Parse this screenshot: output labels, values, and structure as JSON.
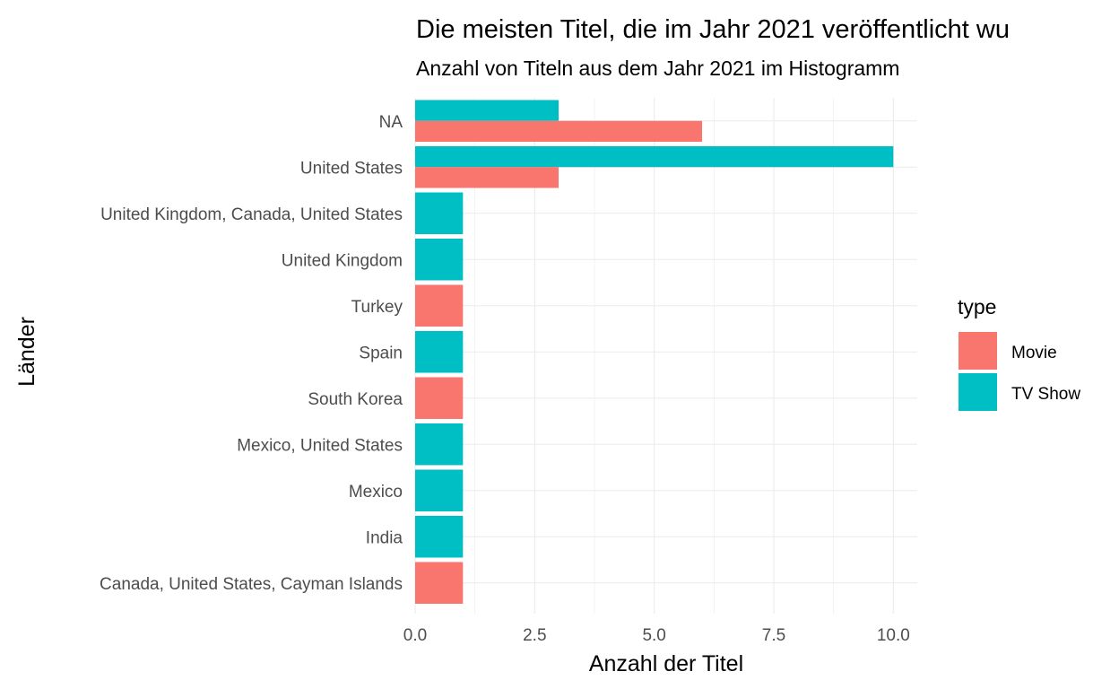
{
  "chart_data": {
    "type": "bar",
    "orientation": "horizontal",
    "title": "Die meisten Titel, die im Jahr 2021 veröffentlicht wu",
    "subtitle": "Anzahl von Titeln aus dem Jahr 2021 im Histogramm",
    "xlabel": "Anzahl der Titel",
    "ylabel": "Länder",
    "categories": [
      "NA",
      "United States",
      "United Kingdom, Canada, United States",
      "United Kingdom",
      "Turkey",
      "Spain",
      "South Korea",
      "Mexico, United States",
      "Mexico",
      "India",
      "Canada, United States, Cayman Islands"
    ],
    "series": [
      {
        "name": "Movie",
        "color": "#F8766D",
        "values": [
          6,
          3,
          null,
          null,
          1,
          null,
          1,
          null,
          null,
          null,
          1
        ]
      },
      {
        "name": "TV Show",
        "color": "#00BFC4",
        "values": [
          3,
          10,
          1,
          1,
          null,
          1,
          null,
          1,
          1,
          1,
          null
        ]
      }
    ],
    "xlim": [
      0,
      10.5
    ],
    "xticks": [
      0,
      2.5,
      5,
      7.5,
      10
    ],
    "xtick_labels": [
      "0.0",
      "2.5",
      "5.0",
      "7.5",
      "10.0"
    ],
    "legend": {
      "title": "type",
      "position": "right"
    },
    "grid": true
  }
}
